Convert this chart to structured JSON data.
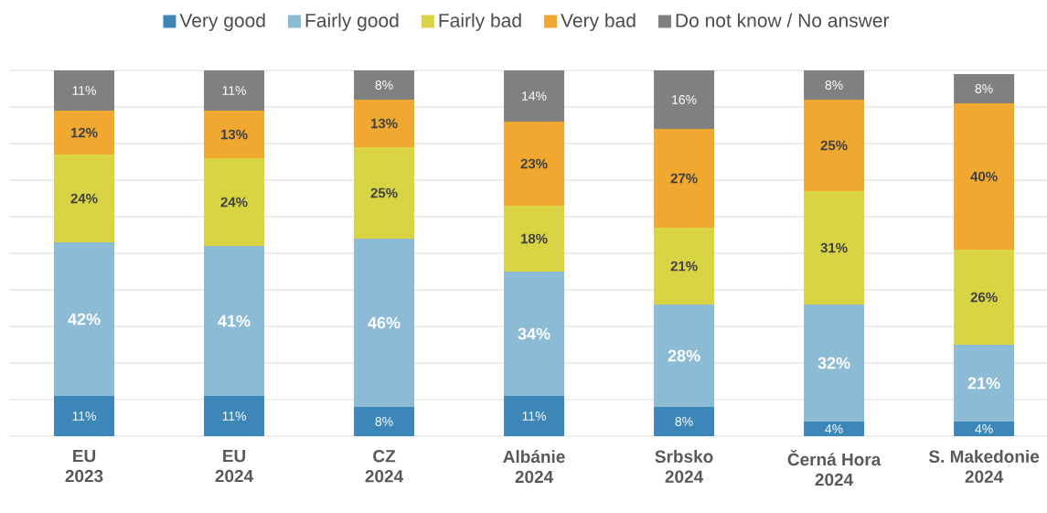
{
  "chart_data": {
    "type": "bar",
    "stacked": true,
    "categories": [
      "EU\n2023",
      "EU\n2024",
      "CZ\n2024",
      "Albánie\n2024",
      "Srbsko\n2024",
      "Černá Hora\n2024",
      "S. Makedonie\n2024"
    ],
    "series": [
      {
        "name": "Very good",
        "color": "#3d87b8",
        "values": [
          11,
          11,
          8,
          11,
          8,
          4,
          4
        ],
        "value_labels": [
          "11%",
          "11%",
          "8%",
          "11%",
          "8%",
          "4%",
          "4%"
        ]
      },
      {
        "name": "Fairly good",
        "color": "#8cbbd6",
        "values": [
          42,
          41,
          46,
          34,
          28,
          32,
          21
        ],
        "value_labels": [
          "42%",
          "41%",
          "46%",
          "34%",
          "28%",
          "32%",
          "21%"
        ]
      },
      {
        "name": "Fairly bad",
        "color": "#d9d444",
        "values": [
          24,
          24,
          25,
          18,
          21,
          31,
          26
        ],
        "value_labels": [
          "24%",
          "24%",
          "25%",
          "18%",
          "21%",
          "31%",
          "26%"
        ]
      },
      {
        "name": "Very bad",
        "color": "#f0a830",
        "values": [
          12,
          13,
          13,
          23,
          27,
          25,
          40
        ],
        "value_labels": [
          "12%",
          "13%",
          "13%",
          "23%",
          "27%",
          "25%",
          "40%"
        ]
      },
      {
        "name": "Do not know / No answer",
        "color": "#808080",
        "values": [
          11,
          11,
          8,
          14,
          16,
          8,
          8
        ],
        "value_labels": [
          "11%",
          "11%",
          "8%",
          "14%",
          "16%",
          "8%",
          "8%"
        ]
      }
    ],
    "ylim": [
      0,
      100
    ],
    "grid": "y",
    "legend": "top",
    "tick_labels": "x"
  }
}
